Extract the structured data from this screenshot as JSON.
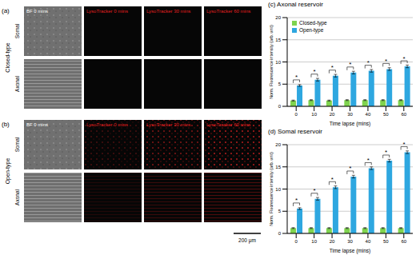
{
  "images": {
    "panels": [
      {
        "label": "(a)",
        "name": "Closed-type"
      },
      {
        "label": "(b)",
        "name": "Open-type"
      }
    ],
    "columns": [
      "BF 0 mins",
      "LysoTracker 0 mins",
      "LysoTracker 30 mins",
      "LysoTracker 60 mins"
    ],
    "rows": [
      "Somal",
      "Axonal"
    ],
    "scale_bar": "200 μm"
  },
  "chart_data": [
    {
      "type": "bar",
      "title": "(c) Axonal reservoir",
      "x_label": "Time lapse (mins)",
      "y_label": "Norm. Fluorescence intensity (arb. unit)",
      "categories": [
        0,
        10,
        20,
        30,
        40,
        50,
        60
      ],
      "series": [
        {
          "name": "Closed-type",
          "color": "#7fd34e",
          "values": [
            1.3,
            1.4,
            1.3,
            1.4,
            1.4,
            1.4,
            1.4
          ],
          "errors": [
            0.1,
            0.1,
            0.1,
            0.1,
            0.1,
            0.1,
            0.1
          ]
        },
        {
          "name": "Open-type",
          "color": "#2ea7e0",
          "values": [
            4.7,
            6.0,
            6.9,
            7.6,
            8.0,
            8.4,
            9.0
          ],
          "errors": [
            0.2,
            0.3,
            0.3,
            0.3,
            0.3,
            0.3,
            0.3
          ]
        }
      ],
      "annotations": [
        "*",
        "*",
        "*",
        "*",
        "*",
        "*",
        "*"
      ],
      "ylim": [
        0,
        20
      ],
      "yticks": [
        0,
        5,
        10,
        15,
        20
      ],
      "grid": true,
      "legend": "upper left"
    },
    {
      "type": "bar",
      "title": "(d) Somal reservoir",
      "x_label": "Time lapse (mins)",
      "y_label": "Norm. Fluorescence intensity (arb. unit)",
      "categories": [
        0,
        10,
        20,
        30,
        40,
        50,
        60
      ],
      "series": [
        {
          "name": "Closed-type",
          "color": "#7fd34e",
          "values": [
            1.2,
            1.2,
            1.2,
            1.2,
            1.2,
            1.2,
            1.2
          ],
          "errors": [
            0.1,
            0.1,
            0.1,
            0.1,
            0.1,
            0.1,
            0.1
          ]
        },
        {
          "name": "Open-type",
          "color": "#2ea7e0",
          "values": [
            5.6,
            7.8,
            10.4,
            12.8,
            14.7,
            16.4,
            18.3
          ],
          "errors": [
            0.2,
            0.3,
            0.3,
            0.3,
            0.3,
            0.3,
            0.3
          ]
        }
      ],
      "annotations": [
        "*",
        "*",
        "*",
        "*",
        "*",
        "*",
        "*"
      ],
      "ylim": [
        0,
        20
      ],
      "yticks": [
        0,
        5,
        10,
        15,
        20
      ],
      "grid": true
    }
  ]
}
